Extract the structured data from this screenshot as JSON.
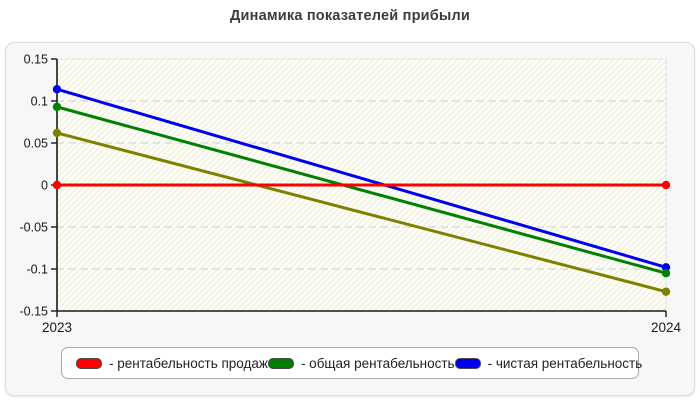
{
  "title": "Динамика показателей прибыли",
  "colors": {
    "red": "#ff0000",
    "green": "#008000",
    "blue": "#0000ee",
    "olive": "#808000",
    "axis": "#1a1a1a",
    "grid": "#cfcfcf",
    "panel_bg": "#f7f7f7",
    "legend_border": "#a9a9a9",
    "plot_hatch": "#ececd8"
  },
  "chart_data": {
    "type": "line",
    "title": "Динамика показателей прибыли",
    "x_categories": [
      "2023",
      "2024"
    ],
    "xlabel": "",
    "ylabel": "",
    "ylim": [
      -0.15,
      0.15
    ],
    "yticks": [
      0.15,
      0.1,
      0.05,
      0,
      -0.05,
      -0.1,
      -0.15
    ],
    "ytick_labels": [
      "0.15",
      "0.1",
      "0.05",
      "0",
      "-0.05",
      "-0.1",
      "-0.15"
    ],
    "grid": "horizontal dashed",
    "legend_position": "bottom",
    "series": [
      {
        "name": "рентабельность продаж",
        "color": "#ff0000",
        "values": [
          0,
          0
        ],
        "in_legend": true
      },
      {
        "name": "общая рентабельность",
        "color": "#008000",
        "values": [
          0.093,
          -0.105
        ],
        "in_legend": true
      },
      {
        "name": "чистая рентабельность",
        "color": "#0000ee",
        "values": [
          0.114,
          -0.098
        ],
        "in_legend": true
      },
      {
        "name": "",
        "color": "#808000",
        "values": [
          0.062,
          -0.127
        ],
        "in_legend": false
      }
    ]
  },
  "legend": {
    "items": [
      {
        "label": "- рентабельность продаж",
        "color": "#ff0000"
      },
      {
        "label": "- общая рентабельность",
        "color": "#008000"
      },
      {
        "label": "- чистая рентабельность",
        "color": "#0000ee"
      }
    ]
  }
}
